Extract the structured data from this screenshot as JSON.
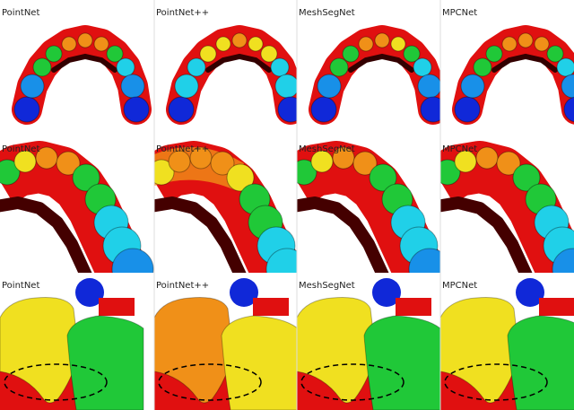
{
  "rows": [
    {
      "labels": [
        "PointNet",
        "PointNet++",
        "MeshSegNet",
        "MPCNet"
      ]
    },
    {
      "labels": [
        "PointNet",
        "PointNet++",
        "MeshSegNet",
        "MPCNet"
      ]
    },
    {
      "labels": [
        "PointNet",
        "PointNet++",
        "MeshSegNet",
        "MPCNet"
      ]
    }
  ]
}
